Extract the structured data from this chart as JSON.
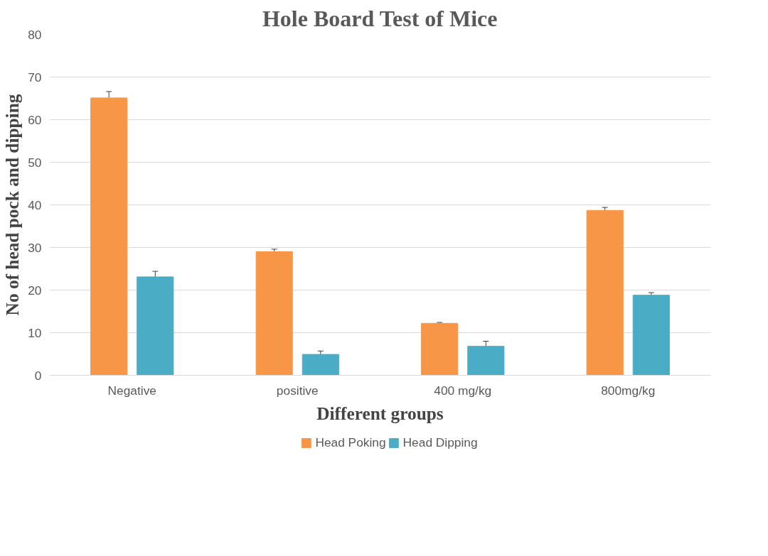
{
  "chart_data": {
    "type": "bar",
    "title": "Hole Board Test of Mice",
    "xlabel": "Different groups",
    "ylabel": "No of head pock and dipping",
    "categories": [
      "Negative",
      "positive",
      "400 mg/kg",
      "800mg/kg"
    ],
    "series": [
      {
        "name": "Head Poking",
        "color": "#f79646",
        "values": [
          65.1,
          29.0,
          12.2,
          38.7
        ],
        "errors": [
          1.5,
          0.6,
          0.2,
          0.7
        ]
      },
      {
        "name": "Head Dipping",
        "color": "#4bacc6",
        "values": [
          23.1,
          4.9,
          6.8,
          18.8
        ],
        "errors": [
          1.3,
          0.8,
          1.2,
          0.6
        ]
      }
    ],
    "ylim": [
      0,
      80
    ],
    "yticks": [
      0,
      10,
      20,
      30,
      40,
      50,
      60,
      70,
      80
    ],
    "grid": "y",
    "legend": "bottom"
  }
}
